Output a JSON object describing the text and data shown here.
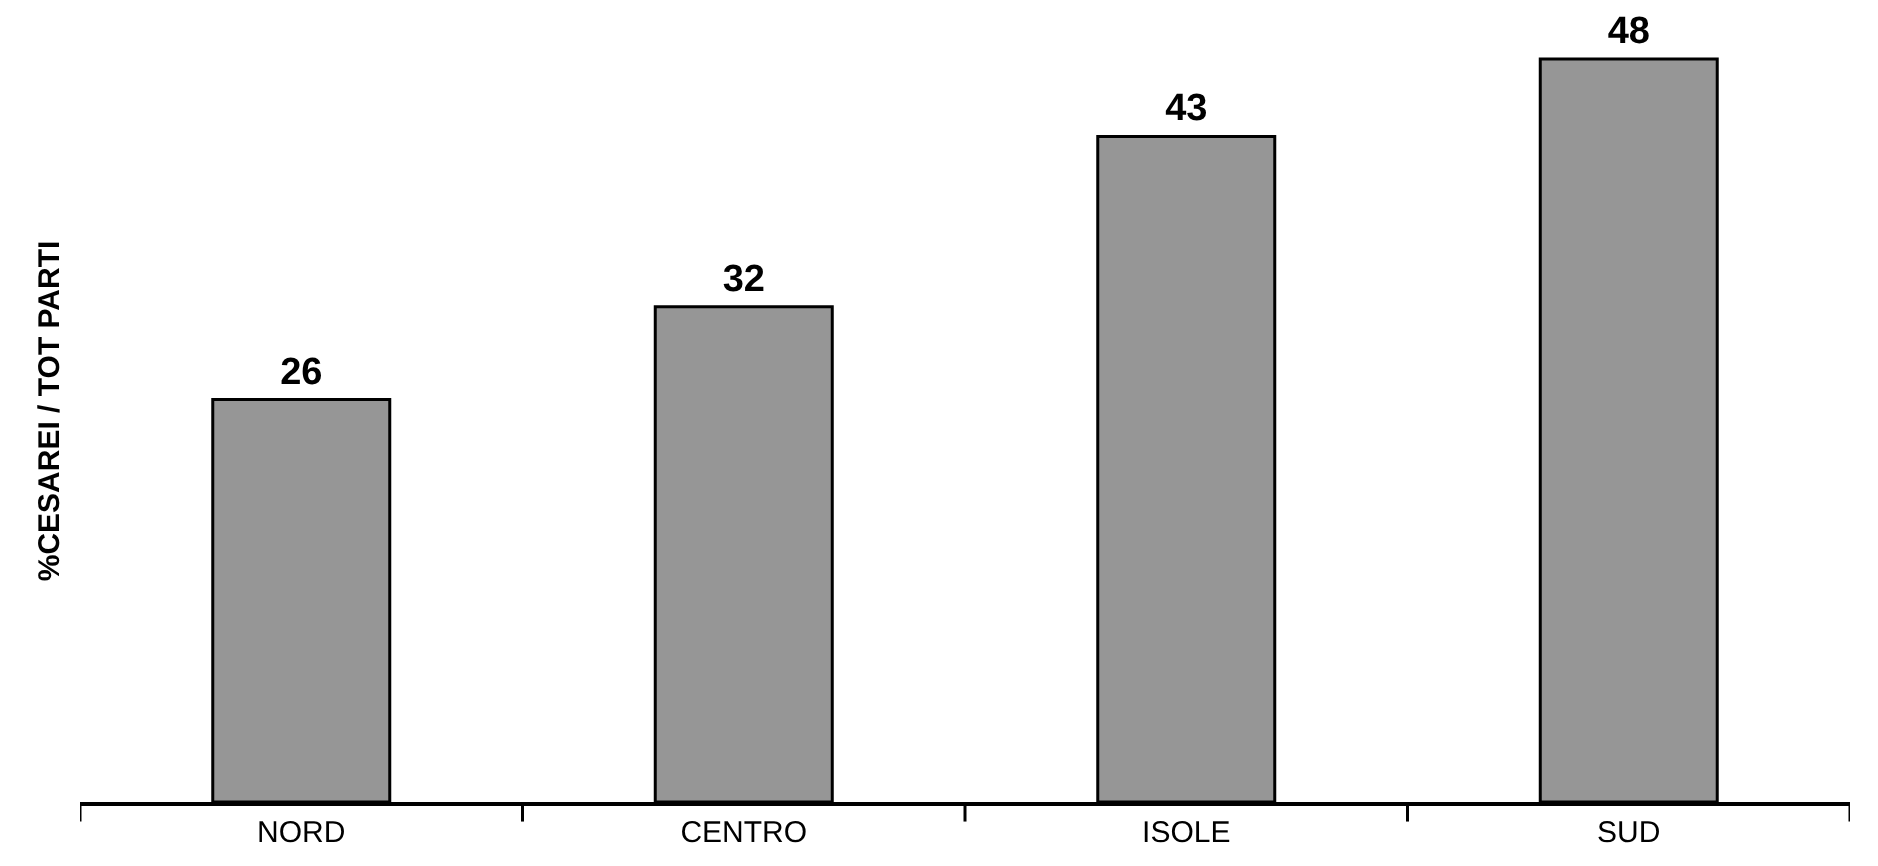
{
  "chart_data": {
    "type": "bar",
    "ylabel": "%CESAREI / TOT PARTI",
    "categories": [
      "NORD",
      "CENTRO",
      "ISOLE",
      "SUD"
    ],
    "values": [
      26,
      32,
      43,
      48
    ],
    "color": "#969696",
    "data_labels": true
  }
}
